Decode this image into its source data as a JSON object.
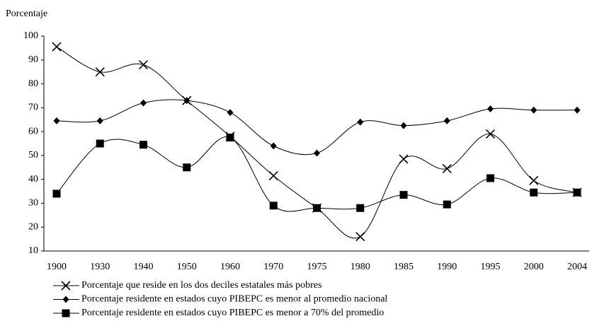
{
  "chart_data": {
    "type": "line",
    "y_label": "Porcentaje",
    "categories": [
      "1900",
      "1930",
      "1940",
      "1950",
      "1960",
      "1970",
      "1975",
      "1980",
      "1985",
      "1990",
      "1995",
      "2000",
      "2004"
    ],
    "series": [
      {
        "name": "Porcentaje que reside en los dos deciles estatales más pobres",
        "color": "#000000",
        "marker": "x",
        "values": [
          95.5,
          85,
          88,
          73,
          58,
          41.5,
          28,
          16,
          48.5,
          44.5,
          59,
          39.5,
          34.5
        ]
      },
      {
        "name": "Porcentaje residente en estados cuyo PIBEPC es menor al promedio nacional",
        "color": "#000000",
        "marker": "diamond",
        "values": [
          64.5,
          64.5,
          72,
          73,
          68,
          54,
          51,
          64,
          62.5,
          64.5,
          69.5,
          69,
          69
        ]
      },
      {
        "name": "Porcentaje residente en estados cuyo PIBEPC es menor a 70% del promedio",
        "color": "#000000",
        "marker": "square",
        "values": [
          34,
          55,
          54.5,
          45,
          57.5,
          29,
          28,
          28,
          33.5,
          29.5,
          40.5,
          34.5,
          34.5
        ]
      }
    ],
    "ylim": [
      10,
      100
    ],
    "yticks": [
      10,
      20,
      30,
      40,
      50,
      60,
      70,
      80,
      90,
      100
    ],
    "grid": false,
    "smooth": true
  }
}
